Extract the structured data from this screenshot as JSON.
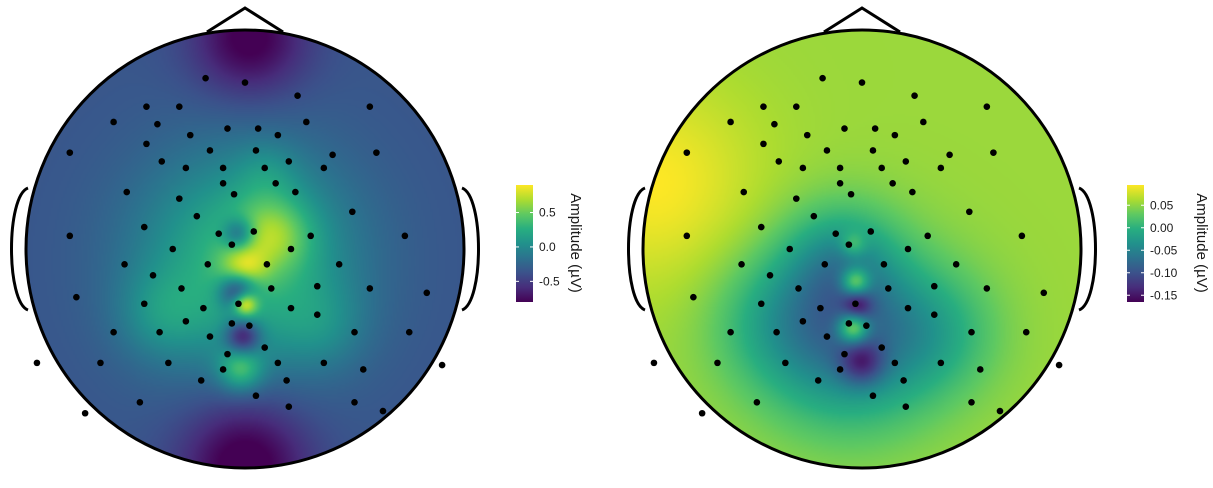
{
  "chart_data": [
    {
      "type": "heatmap",
      "subtype": "eeg-topographic-map",
      "title": "",
      "legend": {
        "title": "Amplitude (µV)",
        "position": "right",
        "ticks": [
          0.5,
          0.0,
          -0.5
        ],
        "tick_labels": [
          "0.5",
          "0.0",
          "-0.5"
        ],
        "range": [
          -0.8,
          0.9
        ]
      },
      "colorscale": "viridis",
      "colorscale_stops": [
        "#440154",
        "#472d7b",
        "#3b528b",
        "#2c728e",
        "#21918c",
        "#28ae80",
        "#5ec962",
        "#addc30",
        "#fde725"
      ],
      "background_level": -0.35,
      "sources": [
        {
          "x": 0.02,
          "y": 0.96,
          "amp": -0.5,
          "sigma": 0.18
        },
        {
          "x": 0.0,
          "y": -0.98,
          "amp": -0.55,
          "sigma": 0.2
        },
        {
          "x": 0.0,
          "y": -0.05,
          "amp": 0.7,
          "sigma": 0.34
        },
        {
          "x": 0.13,
          "y": 0.07,
          "amp": 0.45,
          "sigma": 0.12
        },
        {
          "x": -0.01,
          "y": -0.1,
          "amp": 0.5,
          "sigma": 0.07
        },
        {
          "x": -0.03,
          "y": 0.07,
          "amp": -0.55,
          "sigma": 0.05
        },
        {
          "x": -0.03,
          "y": -0.19,
          "amp": -0.9,
          "sigma": 0.06
        },
        {
          "x": 0.0,
          "y": -0.25,
          "amp": 0.9,
          "sigma": 0.04
        },
        {
          "x": -0.01,
          "y": -0.4,
          "amp": -0.7,
          "sigma": 0.055
        },
        {
          "x": -0.02,
          "y": -0.55,
          "amp": 0.55,
          "sigma": 0.07
        },
        {
          "x": -0.38,
          "y": -0.3,
          "amp": 0.25,
          "sigma": 0.14
        },
        {
          "x": 0.35,
          "y": -0.35,
          "amp": 0.2,
          "sigma": 0.14
        },
        {
          "x": 0.1,
          "y": 0.35,
          "amp": 0.15,
          "sigma": 0.1
        }
      ]
    },
    {
      "type": "heatmap",
      "subtype": "eeg-topographic-map",
      "title": "",
      "legend": {
        "title": "Amplitude (µV)",
        "position": "right",
        "ticks": [
          0.05,
          0.0,
          -0.05,
          -0.1,
          -0.15
        ],
        "tick_labels": [
          "0.05",
          "0.00",
          "-0.05",
          "-0.10",
          "-0.15"
        ],
        "range": [
          -0.165,
          0.095
        ]
      },
      "colorscale": "viridis",
      "colorscale_stops": [
        "#440154",
        "#472d7b",
        "#3b528b",
        "#2c728e",
        "#21918c",
        "#28ae80",
        "#5ec962",
        "#addc30",
        "#fde725"
      ],
      "background_level": 0.055,
      "sources": [
        {
          "x": -0.95,
          "y": 0.3,
          "amp": 0.04,
          "sigma": 0.32
        },
        {
          "x": -0.05,
          "y": -0.4,
          "amp": -0.12,
          "sigma": 0.28
        },
        {
          "x": -0.4,
          "y": -0.32,
          "amp": -0.04,
          "sigma": 0.22
        },
        {
          "x": 0.35,
          "y": -0.38,
          "amp": -0.04,
          "sigma": 0.2
        },
        {
          "x": -0.1,
          "y": -0.05,
          "amp": -0.06,
          "sigma": 0.18
        },
        {
          "x": -0.03,
          "y": -0.15,
          "amp": 0.11,
          "sigma": 0.045
        },
        {
          "x": -0.02,
          "y": -0.26,
          "amp": -0.07,
          "sigma": 0.045
        },
        {
          "x": -0.04,
          "y": -0.36,
          "amp": 0.13,
          "sigma": 0.05
        },
        {
          "x": 0.0,
          "y": -0.52,
          "amp": -0.08,
          "sigma": 0.07
        },
        {
          "x": -0.04,
          "y": 0.02,
          "amp": 0.05,
          "sigma": 0.04
        }
      ]
    }
  ],
  "electrodes": [
    [
      -0.18,
      0.78
    ],
    [
      0.0,
      0.76
    ],
    [
      0.24,
      0.7
    ],
    [
      -0.45,
      0.65
    ],
    [
      -0.3,
      0.65
    ],
    [
      0.57,
      0.65
    ],
    [
      -0.6,
      0.58
    ],
    [
      -0.4,
      0.57
    ],
    [
      -0.08,
      0.55
    ],
    [
      0.06,
      0.55
    ],
    [
      0.28,
      0.58
    ],
    [
      -0.25,
      0.52
    ],
    [
      0.15,
      0.52
    ],
    [
      -0.45,
      0.48
    ],
    [
      -0.8,
      0.44
    ],
    [
      -0.16,
      0.45
    ],
    [
      0.05,
      0.45
    ],
    [
      0.4,
      0.43
    ],
    [
      -0.38,
      0.4
    ],
    [
      0.2,
      0.4
    ],
    [
      -0.27,
      0.37
    ],
    [
      -0.1,
      0.37
    ],
    [
      0.09,
      0.37
    ],
    [
      0.36,
      0.37
    ],
    [
      0.6,
      0.44
    ],
    [
      -0.1,
      0.3
    ],
    [
      0.14,
      0.3
    ],
    [
      -0.54,
      0.26
    ],
    [
      -0.3,
      0.23
    ],
    [
      -0.05,
      0.25
    ],
    [
      0.23,
      0.26
    ],
    [
      -0.22,
      0.15
    ],
    [
      0.49,
      0.17
    ],
    [
      -0.8,
      0.06
    ],
    [
      -0.46,
      0.1
    ],
    [
      -0.12,
      0.07
    ],
    [
      0.04,
      0.08
    ],
    [
      0.3,
      0.06
    ],
    [
      0.73,
      0.06
    ],
    [
      -0.33,
      0.0
    ],
    [
      -0.06,
      0.02
    ],
    [
      0.21,
      0.0
    ],
    [
      -0.55,
      -0.07
    ],
    [
      -0.17,
      -0.07
    ],
    [
      0.1,
      -0.07
    ],
    [
      0.43,
      -0.07
    ],
    [
      -0.42,
      -0.12
    ],
    [
      0.33,
      -0.17
    ],
    [
      -0.29,
      -0.18
    ],
    [
      0.12,
      -0.18
    ],
    [
      0.57,
      -0.18
    ],
    [
      -0.77,
      -0.22
    ],
    [
      -0.46,
      -0.25
    ],
    [
      -0.03,
      -0.25
    ],
    [
      -0.19,
      -0.27
    ],
    [
      0.21,
      -0.27
    ],
    [
      0.83,
      -0.2
    ],
    [
      -0.27,
      -0.33
    ],
    [
      -0.06,
      -0.34
    ],
    [
      0.33,
      -0.3
    ],
    [
      -0.6,
      -0.38
    ],
    [
      -0.39,
      -0.38
    ],
    [
      0.02,
      -0.35
    ],
    [
      -0.16,
      -0.4
    ],
    [
      0.09,
      -0.45
    ],
    [
      0.5,
      -0.38
    ],
    [
      0.75,
      -0.38
    ],
    [
      -0.95,
      -0.52
    ],
    [
      -0.08,
      -0.48
    ],
    [
      0.15,
      -0.52
    ],
    [
      0.36,
      -0.52
    ],
    [
      -0.66,
      -0.52
    ],
    [
      -0.35,
      -0.52
    ],
    [
      -0.2,
      -0.6
    ],
    [
      0.19,
      -0.6
    ],
    [
      0.54,
      -0.55
    ],
    [
      0.9,
      -0.53
    ],
    [
      -0.73,
      -0.75
    ],
    [
      -0.48,
      -0.7
    ],
    [
      0.05,
      -0.67
    ],
    [
      0.2,
      -0.72
    ],
    [
      0.5,
      -0.7
    ],
    [
      0.63,
      -0.74
    ],
    [
      -0.1,
      -0.55
    ]
  ]
}
